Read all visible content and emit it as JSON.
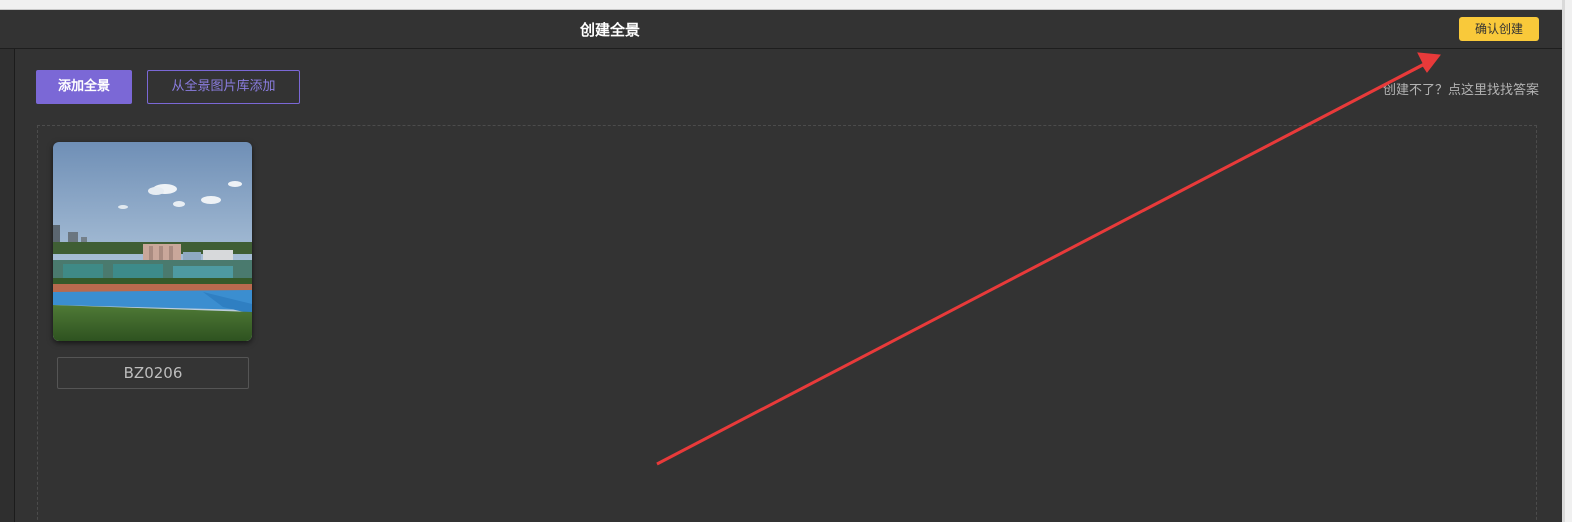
{
  "header": {
    "title": "创建全景",
    "confirm_label": "确认创建"
  },
  "toolbar": {
    "add_panorama_label": "添加全景",
    "add_from_library_label": "从全景图片库添加",
    "help_link_text": "创建不了？点这里找找答案"
  },
  "panoramas": [
    {
      "name": "BZ0206",
      "thumbnail": "panorama-thumbnail"
    }
  ],
  "colors": {
    "accent": "#7b68d6",
    "confirm": "#f9c93a",
    "background": "#333333",
    "annotation_arrow": "#e83a3a"
  }
}
